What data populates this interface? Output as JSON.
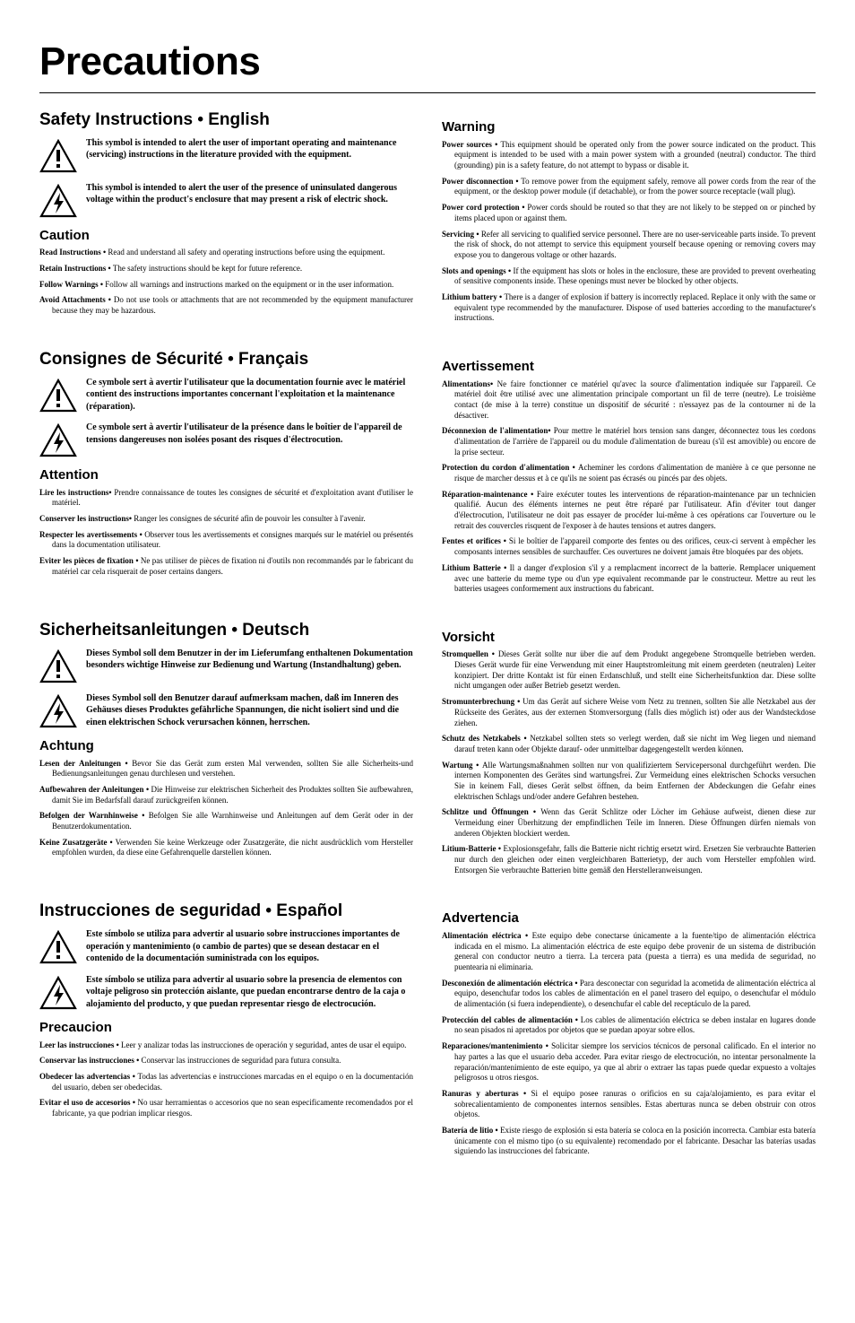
{
  "pageTitle": "Precautions",
  "icons": {
    "exclaim_stroke": "#000",
    "bolt_stroke": "#000",
    "size": 42
  },
  "english": {
    "title": "Safety Instructions • English",
    "symbol1": "This symbol is intended to alert the user of important operating and maintenance (servicing) instructions in the literature provided with the equipment.",
    "symbol2": "This symbol is intended to alert the user of the presence of uninsulated dangerous voltage within the product's enclosure that may present a risk of electric shock.",
    "left": {
      "heading": "Caution",
      "items": [
        {
          "lead": "Read Instructions •",
          "body": "Read and understand all safety and operating instructions before using the equipment."
        },
        {
          "lead": "Retain Instructions •",
          "body": "The safety instructions should be kept for future reference."
        },
        {
          "lead": "Follow Warnings •",
          "body": "Follow all warnings and instructions marked on the equipment or in the user information."
        },
        {
          "lead": "Avoid Attachments •",
          "body": "Do not use tools or attachments that are not recommended by the equipment manufacturer because they may be hazardous."
        }
      ]
    },
    "right": {
      "heading": "Warning",
      "items": [
        {
          "lead": "Power sources •",
          "body": "This equipment should be operated only from the power source indicated on the product. This equipment is intended to be used with a main power system with a grounded (neutral) conductor. The third (grounding) pin is a safety feature, do not attempt to bypass or disable it."
        },
        {
          "lead": "Power disconnection •",
          "body": "To remove power from the equipment safely, remove all power cords from the rear of the equipment, or the desktop power module (if detachable), or from the power source receptacle (wall plug)."
        },
        {
          "lead": "Power cord protection •",
          "body": "Power cords should be routed so that they are not likely to be stepped on or pinched by items placed upon or against them."
        },
        {
          "lead": "Servicing •",
          "body": "Refer all servicing to qualified service personnel. There are no user-serviceable parts inside. To prevent the risk of shock, do not attempt to service this equipment yourself because opening or removing covers may expose you to dangerous voltage or other hazards."
        },
        {
          "lead": "Slots and openings •",
          "body": "If the equipment has slots or holes in the enclosure, these are provided to prevent overheating of sensitive components inside. These openings must never be blocked by other objects."
        },
        {
          "lead": "Lithium battery •",
          "body": "There is a danger of explosion if battery is incorrectly replaced. Replace it only with the same or equivalent type recommended by the manufacturer. Dispose of used batteries according to the manufacturer's instructions."
        }
      ]
    }
  },
  "french": {
    "title": "Consignes de Sécurité • Français",
    "symbol1": "Ce symbole sert à avertir l'utilisateur que la documentation fournie avec le matériel contient des instructions importantes concernant l'exploitation et la maintenance (réparation).",
    "symbol2": "Ce symbole sert à avertir l'utilisateur de la présence dans le boîtier de l'appareil de tensions dangereuses non isolées posant des risques d'électrocution.",
    "left": {
      "heading": "Attention",
      "items": [
        {
          "lead": "Lire les instructions•",
          "body": "Prendre connaissance de toutes les consignes de sécurité et d'exploitation avant d'utiliser le matériel."
        },
        {
          "lead": "Conserver les instructions•",
          "body": "Ranger les consignes de sécurité afin de pouvoir les consulter à l'avenir."
        },
        {
          "lead": "Respecter les avertissements •",
          "body": "Observer tous les avertissements et consignes marqués sur le matériel ou présentés dans la documentation utilisateur."
        },
        {
          "lead": "Eviter les pièces de fixation •",
          "body": "Ne pas utiliser de pièces de fixation ni d'outils non recommandés par le fabricant du matériel car cela risquerait de poser certains dangers."
        }
      ]
    },
    "right": {
      "heading": "Avertissement",
      "items": [
        {
          "lead": "Alimentations•",
          "body": "Ne faire fonctionner ce matériel qu'avec la source d'alimentation indiquée sur l'appareil. Ce matériel doit être utilisé avec une alimentation principale comportant un fil de terre (neutre). Le troisième contact (de mise à la terre) constitue un dispositif de sécurité : n'essayez pas de la contourner ni de la désactiver."
        },
        {
          "lead": "Déconnexion de l'alimentation•",
          "body": "Pour mettre le matériel hors tension sans danger, déconnectez tous les cordons d'alimentation de l'arrière de l'appareil ou du module d'alimentation de bureau (s'il est amovible) ou encore de la prise secteur."
        },
        {
          "lead": "Protection du cordon d'alimentation •",
          "body": "Acheminer les cordons d'alimentation de manière à ce que personne ne risque de marcher dessus et à ce qu'ils ne soient pas écrasés ou pincés par des objets."
        },
        {
          "lead": "Réparation-maintenance •",
          "body": "Faire exécuter toutes les interventions de réparation-maintenance par un technicien qualifié. Aucun des éléments internes ne peut être réparé par l'utilisateur. Afin d'éviter tout danger d'électrocution, l'utilisateur ne doit pas essayer de procéder lui-même à ces opérations car l'ouverture ou le retrait des couvercles risquent de l'exposer à de hautes tensions et autres dangers."
        },
        {
          "lead": "Fentes et orifices •",
          "body": "Si le boîtier de l'appareil comporte des fentes ou des orifices, ceux-ci servent à empêcher les composants internes sensibles de surchauffer. Ces ouvertures ne doivent jamais être bloquées par des objets."
        },
        {
          "lead": "Lithium Batterie •",
          "body": "Il a danger d'explosion s'il y a remplacment incorrect de la batterie. Remplacer uniquement avec une batterie du meme type ou d'un ype equivalent recommande par le constructeur. Mettre au reut les batteries usagees conformement aux instructions du fabricant."
        }
      ]
    }
  },
  "german": {
    "title": "Sicherheitsanleitungen • Deutsch",
    "symbol1": "Dieses Symbol soll dem Benutzer in der im Lieferumfang enthaltenen Dokumentation besonders wichtige Hinweise zur Bedienung und Wartung (Instandhaltung) geben.",
    "symbol2": "Dieses Symbol soll den Benutzer darauf aufmerksam machen, daß im Inneren des Gehäuses dieses Produktes gefährliche Spannungen, die nicht isoliert sind und die einen elektrischen Schock verursachen können, herrschen.",
    "left": {
      "heading": "Achtung",
      "items": [
        {
          "lead": "Lesen der Anleitungen •",
          "body": "Bevor Sie das Gerät zum ersten Mal verwenden, sollten Sie alle Sicherheits-und Bedienungsanleitungen genau durchlesen und verstehen."
        },
        {
          "lead": "Aufbewahren der Anleitungen •",
          "body": "Die Hinweise zur elektrischen Sicherheit des Produktes sollten Sie aufbewahren, damit Sie im Bedarfsfall darauf zurückgreifen können."
        },
        {
          "lead": "Befolgen der Warnhinweise •",
          "body": "Befolgen Sie alle Warnhinweise und Anleitungen auf dem Gerät oder in der Benutzerdokumentation."
        },
        {
          "lead": "Keine Zusatzgeräte •",
          "body": "Verwenden Sie keine Werkzeuge oder Zusatzgeräte, die nicht ausdrücklich vom Hersteller empfohlen wurden, da diese eine Gefahrenquelle darstellen können."
        }
      ]
    },
    "right": {
      "heading": "Vorsicht",
      "items": [
        {
          "lead": "Stromquellen •",
          "body": "Dieses Gerät sollte nur über die auf dem Produkt angegebene Stromquelle betrieben werden. Dieses Gerät wurde für eine Verwendung mit einer Hauptstromleitung mit einem geerdeten (neutralen) Leiter konzipiert. Der dritte Kontakt ist für einen Erdanschluß, und stellt eine Sicherheitsfunktion dar. Diese sollte nicht umgangen oder außer Betrieb gesetzt werden."
        },
        {
          "lead": "Stromunterbrechung •",
          "body": "Um das Gerät auf sichere Weise vom Netz zu trennen, sollten Sie alle Netzkabel aus der Rückseite des Gerätes, aus der externen Stomversorgung (falls dies möglich ist) oder aus der Wandsteckdose ziehen."
        },
        {
          "lead": "Schutz des Netzkabels •",
          "body": "Netzkabel sollten stets so verlegt werden, daß sie nicht im Weg liegen und niemand darauf treten kann oder Objekte darauf- oder unmittelbar dagegengestellt werden können."
        },
        {
          "lead": "Wartung •",
          "body": "Alle Wartungsmaßnahmen sollten nur von qualifiziertem Servicepersonal durchgeführt werden. Die internen Komponenten des Gerätes sind wartungsfrei. Zur Vermeidung eines elektrischen Schocks versuchen Sie in keinem Fall, dieses Gerät selbst öffnen, da beim Entfernen der Abdeckungen die Gefahr eines elektrischen Schlags und/oder andere Gefahren bestehen."
        },
        {
          "lead": "Schlitze und Öffnungen •",
          "body": "Wenn das Gerät Schlitze oder Löcher im Gehäuse aufweist, dienen diese zur Vermeidung einer Überhitzung der empfindlichen Teile im Inneren. Diese Öffnungen dürfen niemals von anderen Objekten blockiert werden."
        },
        {
          "lead": "Litium-Batterie •",
          "body": "Explosionsgefahr, falls die Batterie nicht richtig ersetzt wird. Ersetzen Sie verbrauchte Batterien nur durch den gleichen oder einen vergleichbaren Batterietyp, der auch vom Hersteller empfohlen wird. Entsorgen Sie verbrauchte Batterien bitte gemäß den Herstelleranweisungen."
        }
      ]
    }
  },
  "spanish": {
    "title": "Instrucciones de seguridad • Español",
    "symbol1": "Este símbolo se utiliza para advertir al usuario sobre instrucciones importantes de operación y mantenimiento (o cambio de partes) que se desean destacar en el contenido de la documentación suministrada con los equipos.",
    "symbol2": "Este símbolo se utiliza para advertir al usuario sobre la presencia de elementos con voltaje peligroso sin protección aislante, que puedan encontrarse dentro de la caja o alojamiento del producto, y que puedan representar riesgo de electrocución.",
    "left": {
      "heading": "Precaucion",
      "items": [
        {
          "lead": "Leer las instrucciones •",
          "body": "Leer y analizar todas las instrucciones de operación y seguridad, antes de usar el equipo."
        },
        {
          "lead": "Conservar las instrucciones •",
          "body": "Conservar las instrucciones de seguridad para futura consulta."
        },
        {
          "lead": "Obedecer las advertencias •",
          "body": "Todas las advertencias e instrucciones marcadas en el equipo o en la documentación del usuario, deben ser obedecidas."
        },
        {
          "lead": "Evitar el uso de accesorios •",
          "body": "No usar herramientas o accesorios que no sean especificamente recomendados por el fabricante, ya que podrian implicar riesgos."
        }
      ]
    },
    "right": {
      "heading": "Advertencia",
      "items": [
        {
          "lead": "Alimentación eléctrica •",
          "body": "Este equipo debe conectarse únicamente a la fuente/tipo de alimentación eléctrica indicada en el mismo. La alimentación eléctrica de este equipo debe provenir de un sistema de distribución general con conductor neutro a tierra. La tercera pata (puesta a tierra) es una medida de seguridad, no puentearia ni eliminaria."
        },
        {
          "lead": "Desconexión de alimentación eléctrica •",
          "body": "Para desconectar con seguridad la acometida de alimentación eléctrica al equipo, desenchufar todos los cables de alimentación en el panel trasero del equipo, o desenchufar el módulo de alimentación (si fuera independiente), o desenchufar el cable del receptáculo de la pared."
        },
        {
          "lead": "Protección del cables de alimentación •",
          "body": "Los cables de alimentación eléctrica se deben instalar en lugares donde no sean pisados ni apretados por objetos que se puedan apoyar sobre ellos."
        },
        {
          "lead": "Reparaciones/mantenimiento •",
          "body": "Solicitar siempre los servicios técnicos de personal calificado. En el interior no hay partes a las que el usuario deba acceder. Para evitar riesgo de electrocución, no intentar personalmente la reparación/mantenimiento de este equipo, ya que al abrir o extraer las tapas puede quedar expuesto a voltajes peligrosos u otros riesgos."
        },
        {
          "lead": "Ranuras y aberturas •",
          "body": "Si el equipo posee ranuras o orificios en su caja/alojamiento, es para evitar el sobrecalientamiento de componentes internos sensibles. Estas aberturas nunca se deben obstruir con otros objetos."
        },
        {
          "lead": "Batería de litio •",
          "body": "Existe riesgo de explosión si esta batería se coloca en la posición incorrecta. Cambiar esta batería únicamente con el mismo tipo (o su equivalente) recomendado por el fabricante. Desachar las baterías usadas siguiendo las instrucciones del fabricante."
        }
      ]
    }
  }
}
